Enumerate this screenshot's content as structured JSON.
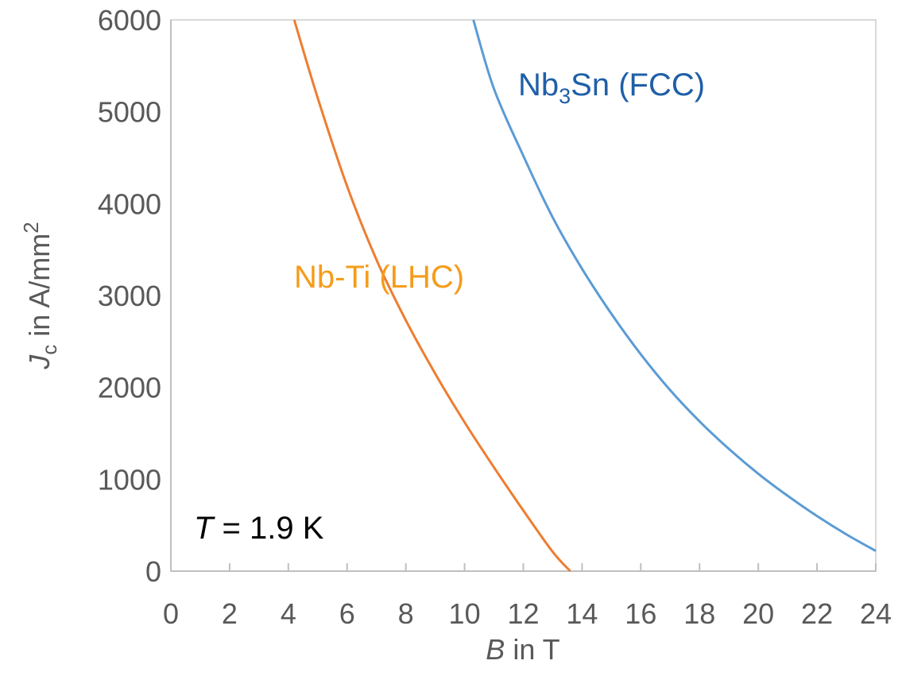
{
  "chart_data": {
    "type": "line",
    "xlabel": {
      "symbol": "B",
      "rest": " in T"
    },
    "ylabel": {
      "symbol": "J",
      "subscript": "c",
      "rest": " in A/mm",
      "superscript": "2"
    },
    "xlim": [
      0,
      24
    ],
    "ylim": [
      0,
      6000
    ],
    "x_ticks": [
      "0",
      "2",
      "4",
      "6",
      "8",
      "10",
      "12",
      "14",
      "16",
      "18",
      "20",
      "22",
      "24"
    ],
    "y_ticks": [
      "0",
      "1000",
      "2000",
      "3000",
      "4000",
      "5000",
      "6000"
    ],
    "grid": false,
    "series": [
      {
        "name": "Nb-Ti (LHC)",
        "color": "#ED7D31",
        "label_color": "#F59C1A",
        "x": [
          4.2,
          5.0,
          6.0,
          7.0,
          8.0,
          9.0,
          10.0,
          11.0,
          12.0,
          13.0,
          13.6
        ],
        "y": [
          6000,
          5150,
          4190,
          3390,
          2730,
          2150,
          1620,
          1130,
          660,
          210,
          0
        ]
      },
      {
        "name_parts": [
          "Nb",
          "3",
          "Sn (FCC)"
        ],
        "color": "#5B9BD5",
        "label_color": "#1F5FA8",
        "x": [
          10.3,
          11.0,
          12.0,
          13.0,
          14.0,
          15.0,
          16.0,
          17.0,
          18.0,
          19.0,
          20.0,
          21.0,
          22.0,
          23.0,
          24.0
        ],
        "y": [
          6000,
          5250,
          4520,
          3850,
          3290,
          2800,
          2360,
          1970,
          1630,
          1330,
          1060,
          820,
          600,
          400,
          220
        ]
      }
    ],
    "annotations": {
      "temperature": {
        "symbol": "T",
        "rest": " = 1.9 K"
      }
    }
  }
}
